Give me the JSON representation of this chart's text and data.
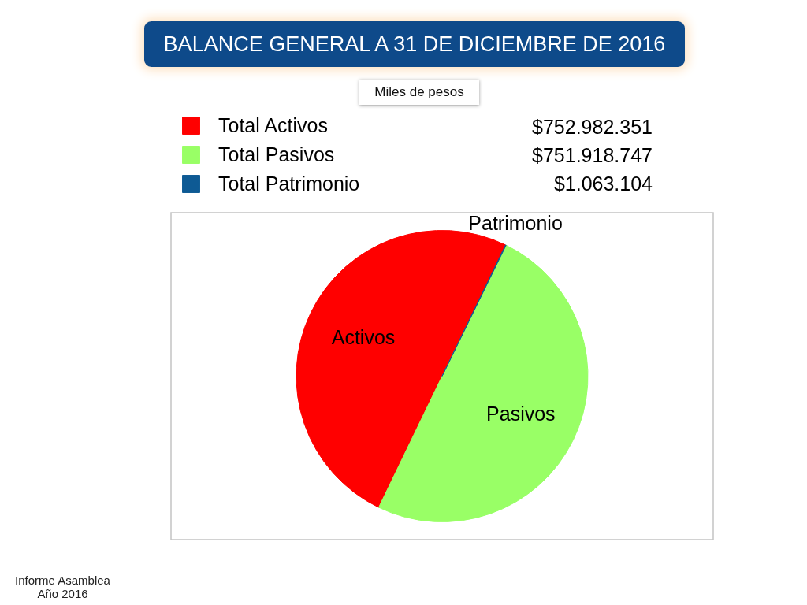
{
  "chart_data": {
    "type": "pie",
    "title": "BALANCE GENERAL A 31 DE DICIEMBRE DE 2016",
    "subtitle": "Miles de pesos",
    "categories": [
      "Total Activos",
      "Total Pasivos",
      "Total Patrimonio"
    ],
    "values": [
      752982351,
      751918747,
      1063104
    ],
    "colors": [
      "#ff0000",
      "#99ff66",
      "#0e5a94"
    ],
    "value_labels": [
      "$752.982.351",
      "$751.918.747",
      "$1.063.104"
    ],
    "legend": "top left",
    "annotations": [
      {
        "text": "Activos",
        "x": "Total Activos"
      },
      {
        "text": "Pasivos",
        "x": "Total Pasivos"
      },
      {
        "text": "Patrimonio",
        "x": "Total Patrimonio"
      },
      "Informe Asamblea Año 2016"
    ]
  }
}
